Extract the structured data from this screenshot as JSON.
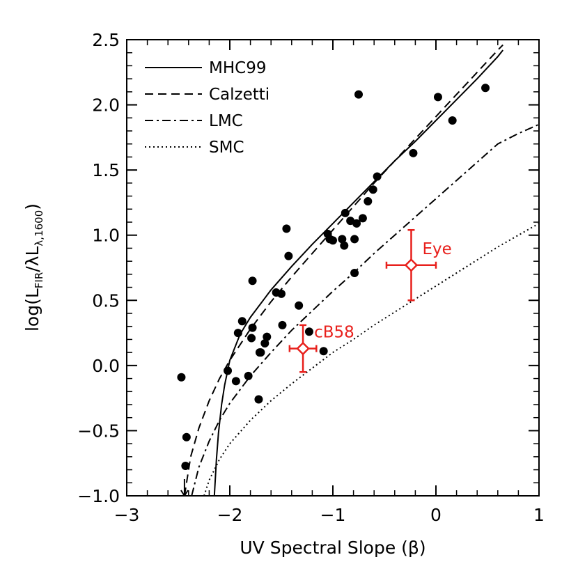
{
  "chart_data": {
    "type": "scatter",
    "xlabel": "UV Spectral Slope (β)",
    "ylabel_parts": {
      "open": "log(L",
      "sub1": "FIR",
      "mid": "/λL",
      "sub2": "λ,1600",
      "close": ")"
    },
    "xlim": [
      -3,
      1
    ],
    "ylim": [
      -1.0,
      2.5
    ],
    "x_ticks": [
      -3,
      -2,
      -1,
      0,
      1
    ],
    "x_tick_labels": [
      "−3",
      "−2",
      "−1",
      "0",
      "1"
    ],
    "y_ticks": [
      -1.0,
      -0.5,
      0.0,
      0.5,
      1.0,
      1.5,
      2.0,
      2.5
    ],
    "y_tick_labels": [
      "−1.0",
      "−0.5",
      "0.0",
      "0.5",
      "1.0",
      "1.5",
      "2.0",
      "2.5"
    ],
    "colors": {
      "points": "#000000",
      "annotation": "#e8201c"
    },
    "series": [
      {
        "name": "MHC99",
        "style": "solid",
        "x": [
          -2.15,
          -2.13,
          -2.11,
          -2.08,
          -2.05,
          -2.0,
          -1.9,
          -1.8,
          -1.6,
          -1.4,
          -1.2,
          -1.0,
          -0.8,
          -0.6,
          -0.4,
          -0.2,
          0.0,
          0.2,
          0.4,
          0.6,
          0.65
        ],
        "y": [
          -1.0,
          -0.72,
          -0.52,
          -0.3,
          -0.15,
          0.04,
          0.24,
          0.37,
          0.58,
          0.76,
          0.93,
          1.09,
          1.25,
          1.41,
          1.57,
          1.72,
          1.88,
          2.04,
          2.2,
          2.37,
          2.42
        ]
      },
      {
        "name": "Calzetti",
        "style": "dashed",
        "x": [
          -2.44,
          -2.38,
          -2.3,
          -2.2,
          -2.1,
          -2.0,
          -1.8,
          -1.6,
          -1.4,
          -1.2,
          -1.0,
          -0.8,
          -0.6,
          -0.4,
          -0.2,
          0.0,
          0.2,
          0.4,
          0.6,
          0.65
        ],
        "y": [
          -1.0,
          -0.7,
          -0.48,
          -0.27,
          -0.1,
          0.04,
          0.28,
          0.49,
          0.68,
          0.86,
          1.04,
          1.22,
          1.4,
          1.57,
          1.74,
          1.91,
          2.08,
          2.25,
          2.42,
          2.46
        ]
      },
      {
        "name": "LMC",
        "style": "dashdot",
        "x": [
          -2.37,
          -2.3,
          -2.2,
          -2.1,
          -2.0,
          -1.8,
          -1.6,
          -1.4,
          -1.2,
          -1.0,
          -0.8,
          -0.6,
          -0.4,
          -0.2,
          0.0,
          0.2,
          0.4,
          0.6,
          0.8,
          1.0
        ],
        "y": [
          -1.0,
          -0.78,
          -0.58,
          -0.42,
          -0.29,
          -0.08,
          0.1,
          0.27,
          0.42,
          0.57,
          0.71,
          0.86,
          1.0,
          1.14,
          1.28,
          1.42,
          1.56,
          1.7,
          1.78,
          1.85
        ]
      },
      {
        "name": "SMC",
        "style": "dotted",
        "x": [
          -2.25,
          -2.2,
          -2.1,
          -2.0,
          -1.8,
          -1.6,
          -1.4,
          -1.2,
          -1.0,
          -0.8,
          -0.6,
          -0.4,
          -0.2,
          0.0,
          0.2,
          0.4,
          0.6,
          0.8,
          1.0
        ],
        "y": [
          -1.0,
          -0.88,
          -0.72,
          -0.6,
          -0.42,
          -0.27,
          -0.14,
          -0.02,
          0.1,
          0.2,
          0.31,
          0.41,
          0.51,
          0.61,
          0.71,
          0.81,
          0.91,
          1.0,
          1.09
        ]
      }
    ],
    "points": {
      "x": [
        -2.47,
        -2.42,
        -2.43,
        -1.94,
        -2.02,
        -1.92,
        -1.88,
        -1.82,
        -1.79,
        -1.78,
        -1.78,
        -1.71,
        -1.7,
        -1.72,
        -1.66,
        -1.64,
        -1.55,
        -1.5,
        -1.49,
        -1.45,
        -1.43,
        -1.33,
        -1.23,
        -1.09,
        -1.05,
        -1.03,
        -1.0,
        -0.91,
        -0.88,
        -0.83,
        -0.79,
        -0.77,
        -0.75,
        -0.71,
        -0.66,
        -0.61,
        -0.57,
        -0.89,
        -0.79,
        -0.22,
        0.02,
        0.16,
        0.48
      ],
      "y": [
        -0.09,
        -0.55,
        -0.77,
        -0.12,
        -0.04,
        0.25,
        0.34,
        -0.08,
        0.21,
        0.65,
        0.29,
        0.1,
        0.1,
        -0.26,
        0.17,
        0.22,
        0.56,
        0.55,
        0.31,
        1.05,
        0.84,
        0.46,
        0.26,
        0.11,
        1.01,
        0.97,
        0.96,
        0.97,
        1.17,
        1.11,
        0.97,
        1.09,
        2.08,
        1.13,
        1.26,
        1.35,
        1.45,
        0.92,
        0.71,
        1.63,
        2.06,
        1.88,
        2.13
      ]
    },
    "upper_limit": {
      "x": -2.44,
      "y": -1.0
    },
    "annotations": [
      {
        "label": "cB58",
        "x": -1.29,
        "y": 0.13,
        "xerr": 0.13,
        "yerr": 0.18
      },
      {
        "label": "Eye",
        "x": -0.24,
        "y": 0.77,
        "xerr": 0.24,
        "yerr": 0.27
      }
    ],
    "legend": {
      "location": "top-left",
      "entries": [
        "MHC99",
        "Calzetti",
        "LMC",
        "SMC"
      ]
    }
  }
}
